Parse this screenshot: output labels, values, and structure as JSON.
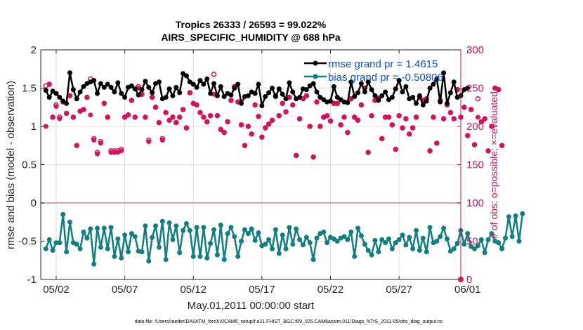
{
  "chart_data": {
    "type": "line",
    "title": [
      "Tropics 26333 / 26593 = 99.022%",
      "AIRS_SPECIFIC_HUMIDITY @ 688 hPa"
    ],
    "xlabel": "May.01,2011 00:00:00 start",
    "ylabel": "rmse and bias (model - observation)",
    "ylabel_right": "# of obs: o=possible; ×=evaluated",
    "ylim": [
      -1,
      2
    ],
    "ylim_right": [
      0,
      300
    ],
    "xlim_days": [
      0.875,
      31.5
    ],
    "yticks": [
      "2",
      "1.5",
      "1",
      "0.5",
      "0",
      "-0.5",
      "-1"
    ],
    "yticks_values": [
      2,
      1.5,
      1,
      0.5,
      0,
      -0.5,
      -1
    ],
    "yticks_right": [
      "300",
      "250",
      "200",
      "150",
      "100",
      "50",
      "0"
    ],
    "yticks_right_values": [
      300,
      250,
      200,
      150,
      100,
      50,
      0
    ],
    "xticks": [
      "05/02",
      "05/07",
      "05/12",
      "05/17",
      "05/22",
      "05/27",
      "06/01"
    ],
    "xticks_days": [
      2,
      7,
      12,
      17,
      22,
      27,
      32
    ],
    "grid": true,
    "legend_position": "top-right",
    "colors": {
      "rmse": "#000000",
      "bias": "#0f7f7f",
      "obs": "#d9105a",
      "legend_text": "#0b4fe0",
      "zero_line": "#c8a8b0"
    },
    "series": [
      {
        "name": "rmse grand pr = 1.4615",
        "values": [
          1.47,
          1.38,
          1.46,
          1.43,
          1.38,
          1.33,
          1.3,
          1.7,
          1.48,
          1.36,
          1.45,
          1.52,
          1.56,
          1.58,
          1.6,
          1.43,
          1.56,
          1.51,
          1.55,
          1.51,
          1.45,
          1.57,
          1.43,
          1.38,
          1.51,
          1.53,
          1.49,
          1.41,
          1.48,
          1.59,
          1.51,
          1.44,
          1.56,
          1.58,
          1.36,
          1.38,
          1.49,
          1.4,
          1.51,
          1.44,
          1.69,
          1.66,
          1.58,
          1.55,
          1.51,
          1.6,
          1.55,
          1.62,
          1.43,
          1.56,
          1.4,
          1.52,
          1.39,
          1.43,
          1.41,
          1.5,
          1.55,
          1.3,
          1.39,
          1.4,
          1.45,
          1.43,
          1.55,
          1.27,
          1.39,
          1.44,
          1.5,
          1.39,
          1.49,
          1.42,
          1.36,
          1.57,
          1.45,
          1.36,
          1.38,
          1.49,
          1.48,
          1.53,
          1.56,
          1.45,
          1.38,
          1.35,
          1.32,
          1.33,
          1.52,
          1.38,
          1.35,
          1.32,
          1.31,
          1.58,
          1.39,
          1.44,
          1.56,
          1.45,
          1.58,
          1.48,
          1.4,
          1.34,
          1.4,
          1.45,
          1.35,
          1.38,
          1.49,
          1.6,
          1.45,
          1.52,
          1.36,
          1.38,
          1.3,
          1.4,
          1.28,
          1.33,
          1.5,
          1.55,
          1.62,
          1.32,
          1.7,
          1.3,
          1.44,
          1.58,
          1.38,
          1.4,
          1.48,
          1.5
        ]
      },
      {
        "name": "bias grand pr = -0.50806",
        "values": [
          -0.6,
          -0.48,
          -0.62,
          -0.52,
          -0.52,
          -0.15,
          -0.64,
          -0.25,
          -0.52,
          -0.54,
          -0.6,
          -0.38,
          -0.46,
          -0.34,
          -0.8,
          -0.33,
          -0.58,
          -0.33,
          -0.6,
          -0.32,
          -0.7,
          -0.47,
          -0.72,
          -0.42,
          -0.64,
          -0.4,
          -0.44,
          -0.63,
          -0.64,
          -0.3,
          -0.76,
          -0.45,
          -0.3,
          -0.58,
          -0.24,
          -0.74,
          -0.26,
          -0.48,
          -0.3,
          -0.65,
          -0.36,
          -0.27,
          -0.36,
          -0.7,
          -0.32,
          -0.7,
          -0.32,
          -0.72,
          -0.53,
          -0.35,
          -0.68,
          -0.29,
          -0.74,
          -0.4,
          -0.32,
          -0.44,
          -0.7,
          -0.5,
          -0.35,
          -0.4,
          -0.34,
          -0.49,
          -0.39,
          -0.56,
          -0.54,
          -0.48,
          -0.6,
          -0.35,
          -0.66,
          -0.42,
          -0.6,
          -0.32,
          -0.54,
          -0.34,
          -0.48,
          -0.55,
          -0.45,
          -0.52,
          -0.74,
          -0.46,
          -0.4,
          -0.38,
          -0.52,
          -0.45,
          -0.47,
          -0.5,
          -0.46,
          -0.44,
          -0.48,
          -0.38,
          -0.7,
          -0.33,
          -0.43,
          -0.54,
          -0.62,
          -0.68,
          -0.49,
          -0.64,
          -0.48,
          -0.52,
          -0.47,
          -0.6,
          -0.52,
          -0.48,
          -0.42,
          -0.55,
          -0.45,
          -0.6,
          -0.36,
          -0.62,
          -0.46,
          -0.64,
          -0.32,
          -0.52,
          -0.5,
          -0.44,
          -0.33,
          -0.47,
          -0.63,
          -0.6,
          -0.53,
          -0.36,
          -0.54,
          -0.4,
          -0.57,
          -0.6,
          -0.56,
          -0.48,
          -0.65,
          -0.48,
          -0.4,
          -0.5,
          -0.52,
          -0.6,
          -0.46,
          -0.18,
          -0.44,
          -0.17,
          -0.5,
          -0.14
        ]
      },
      {
        "name": "# obs evaluated",
        "values": [
          200,
          255,
          212,
          226,
          210,
          232,
          217,
          240,
          212,
          175,
          220,
          222,
          238,
          215,
          182,
          164,
          178,
          230,
          212,
          166,
          166,
          166,
          168,
          212,
          215,
          234,
          212,
          250,
          242,
          212,
          180,
          238,
          225,
          205,
          182,
          218,
          208,
          212,
          205,
          212,
          222,
          198,
          244,
          230,
          228,
          218,
          212,
          206,
          214,
          242,
          214,
          196,
          192,
          206,
          234,
          252,
          232,
          202,
          175,
          200,
          190,
          228,
          213,
          186,
          198,
          203,
          208,
          240,
          214,
          230,
          219,
          238,
          228,
          162,
          210,
          236,
          240,
          200,
          160,
          232,
          200,
          212,
          214,
          207,
          230,
          230,
          202,
          212,
          192,
          236,
          212,
          208,
          228,
          250,
          166,
          214,
          234,
          237,
          184,
          212,
          212,
          202,
          170,
          214,
          198,
          210,
          190,
          198,
          212,
          238,
          234,
          236,
          168,
          212,
          178,
          234,
          210,
          228,
          218,
          210,
          248,
          212,
          225,
          188,
          222,
          176,
          212,
          206,
          210,
          168,
          200,
          250,
          248,
          175
        ]
      },
      {
        "name": "# obs possible",
        "values": [
          253,
          255,
          212,
          228,
          212,
          232,
          217,
          240,
          212,
          175,
          220,
          222,
          238,
          262,
          184,
          166,
          180,
          230,
          212,
          168,
          168,
          168,
          170,
          212,
          215,
          234,
          212,
          252,
          242,
          212,
          182,
          238,
          225,
          205,
          184,
          218,
          208,
          212,
          205,
          212,
          222,
          198,
          244,
          230,
          228,
          218,
          212,
          206,
          214,
          268,
          214,
          196,
          192,
          206,
          234,
          252,
          232,
          202,
          175,
          200,
          190,
          228,
          213,
          186,
          198,
          203,
          208,
          240,
          214,
          230,
          219,
          238,
          228,
          162,
          210,
          236,
          240,
          200,
          160,
          232,
          200,
          212,
          214,
          207,
          230,
          230,
          202,
          212,
          192,
          236,
          212,
          208,
          228,
          250,
          166,
          214,
          234,
          237,
          184,
          212,
          212,
          202,
          170,
          214,
          198,
          210,
          190,
          198,
          212,
          238,
          234,
          236,
          168,
          212,
          178,
          234,
          210,
          228,
          218,
          210,
          248,
          212,
          225,
          188,
          222,
          176,
          236,
          206,
          210,
          168,
          200,
          250,
          248,
          175
        ]
      }
    ],
    "footnote": "data file: /Users/raeder/DAI/ATM_forcXX/CAM6_setup/f.e21.FHIST_BGC.f09_025.CAM6assim.011/Diags_NTrS_2011-05/obs_diag_output.nc"
  }
}
